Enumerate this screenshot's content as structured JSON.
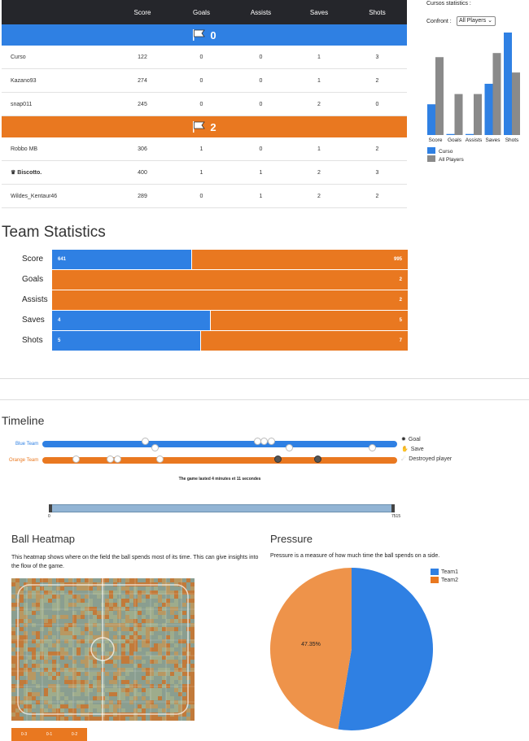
{
  "scoreboard": {
    "headers": [
      "Score",
      "Goals",
      "Assists",
      "Saves",
      "Shots"
    ],
    "blue_team": {
      "score": "0",
      "players": [
        {
          "name": "Curso",
          "score": "122",
          "goals": "0",
          "assists": "0",
          "saves": "1",
          "shots": "3"
        },
        {
          "name": "Kazano93",
          "score": "274",
          "goals": "0",
          "assists": "0",
          "saves": "1",
          "shots": "2"
        },
        {
          "name": "snap011",
          "score": "245",
          "goals": "0",
          "assists": "0",
          "saves": "2",
          "shots": "0"
        }
      ]
    },
    "orange_team": {
      "score": "2",
      "players": [
        {
          "name": "Robbo MB",
          "score": "306",
          "goals": "1",
          "assists": "0",
          "saves": "1",
          "shots": "2"
        },
        {
          "name": "Biscotto.",
          "score": "400",
          "goals": "1",
          "assists": "1",
          "saves": "2",
          "shots": "3",
          "mvp": true
        },
        {
          "name": "Wildes_Kentaur46",
          "score": "289",
          "goals": "0",
          "assists": "1",
          "saves": "2",
          "shots": "2"
        }
      ]
    }
  },
  "side_stats": {
    "title": "Cursos statistics :",
    "confront_label": "Confront :",
    "select_value": "All Players",
    "categories": [
      "Score",
      "Goals",
      "Assists",
      "Saves",
      "Shots"
    ],
    "series": [
      {
        "name": "Curso",
        "values": [
          0.3,
          0.01,
          0.01,
          0.5,
          1.0
        ],
        "color": "#2f80e3"
      },
      {
        "name": "All Players",
        "values": [
          0.76,
          0.4,
          0.4,
          0.8,
          0.61
        ],
        "color": "#8a8a8a"
      }
    ]
  },
  "team_stats": {
    "title": "Team Statistics",
    "rows": [
      {
        "label": "Score",
        "blue": "641",
        "orange": "995",
        "blue_frac": 0.392
      },
      {
        "label": "Goals",
        "blue": "",
        "orange": "2",
        "blue_frac": 0
      },
      {
        "label": "Assists",
        "blue": "",
        "orange": "2",
        "blue_frac": 0
      },
      {
        "label": "Saves",
        "blue": "4",
        "orange": "5",
        "blue_frac": 0.444
      },
      {
        "label": "Shots",
        "blue": "5",
        "orange": "7",
        "blue_frac": 0.417
      }
    ]
  },
  "timeline": {
    "title": "Timeline",
    "blue_label": "Blue Team",
    "orange_label": "Orange Team",
    "legend": [
      "Goal",
      "Save",
      "Destroyed player"
    ],
    "duration_text": "The game lasted 4 minutes et 11 secondes",
    "slider_min": "0",
    "slider_max": "7515"
  },
  "heatmap": {
    "title": "Ball Heatmap",
    "description": "This heatmap shows where on the field the ball spends most of its time. This can give insights into the flow of the game.",
    "buttons": [
      "0-3",
      "0-1",
      "0-2"
    ]
  },
  "pressure": {
    "title": "Pressure",
    "description": "Pressure is a measure of how much time the ball spends on a side.",
    "legend": [
      "Team1",
      "Team2"
    ],
    "team1_pct": 52.65,
    "team2_pct": 47.35,
    "label": "47.35%",
    "colors": {
      "team1": "#2f80e3",
      "team2": "#ee934a"
    }
  },
  "colors": {
    "blue": "#2f80e3",
    "orange": "#e97820",
    "header": "#25262b"
  }
}
